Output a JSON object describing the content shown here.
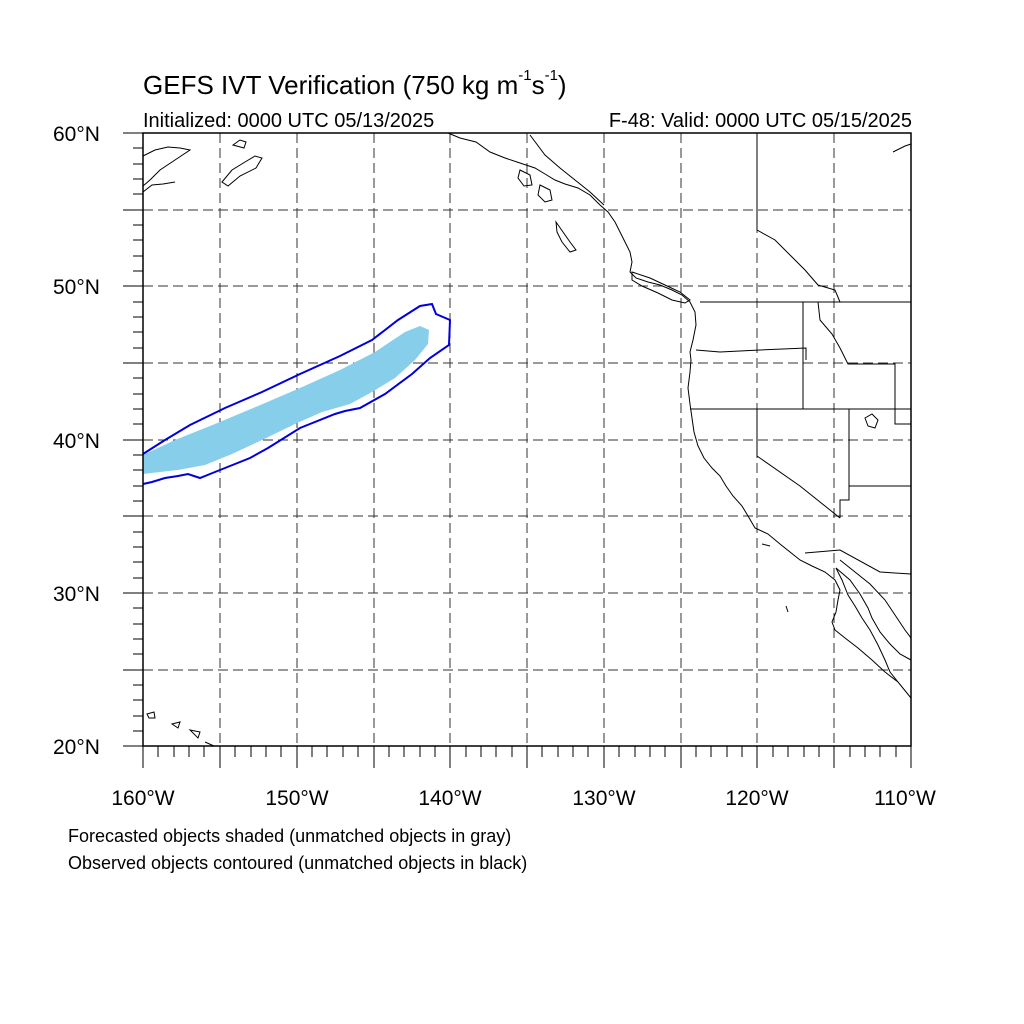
{
  "title": {
    "main": "GEFS IVT Verification (750 kg m",
    "exp1": "-1",
    "mid": "s",
    "exp2": "-1",
    "close": ")"
  },
  "initialized": "Initialized: 0000 UTC 05/13/2025",
  "valid": "F-48: Valid: 0000 UTC 05/15/2025",
  "lat_labels": [
    "60°N",
    "50°N",
    "40°N",
    "30°N",
    "20°N"
  ],
  "lon_labels": [
    "160°W",
    "150°W",
    "140°W",
    "130°W",
    "120°W",
    "110°W"
  ],
  "footer": {
    "line1": "Forecasted objects shaded (unmatched objects in gray)",
    "line2": "Observed objects contoured (unmatched objects in black)"
  },
  "map_extent": {
    "lon": [
      -160,
      -110
    ],
    "lat": [
      20,
      60
    ]
  },
  "colors": {
    "forecast_fill": "#87ceeb",
    "observed_contour": "#0000dd",
    "coastline": "#000000",
    "grid": "#333333"
  }
}
